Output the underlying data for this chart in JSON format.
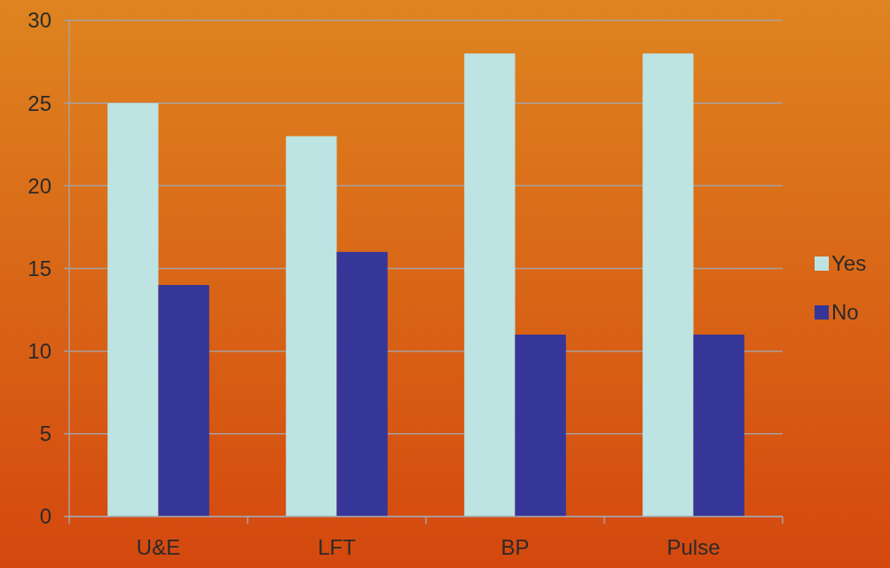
{
  "chart_data": {
    "type": "bar",
    "categories": [
      "U&E",
      "LFT",
      "BP",
      "Pulse"
    ],
    "series": [
      {
        "name": "Yes",
        "color": "#bde3e3",
        "values": [
          25,
          23,
          28,
          28
        ]
      },
      {
        "name": "No",
        "color": "#353698",
        "values": [
          14,
          16,
          11,
          11
        ]
      }
    ],
    "ylim": [
      0,
      30
    ],
    "yticks": [
      0,
      5,
      10,
      15,
      20,
      25,
      30
    ],
    "grid": "y",
    "legend": "right"
  }
}
